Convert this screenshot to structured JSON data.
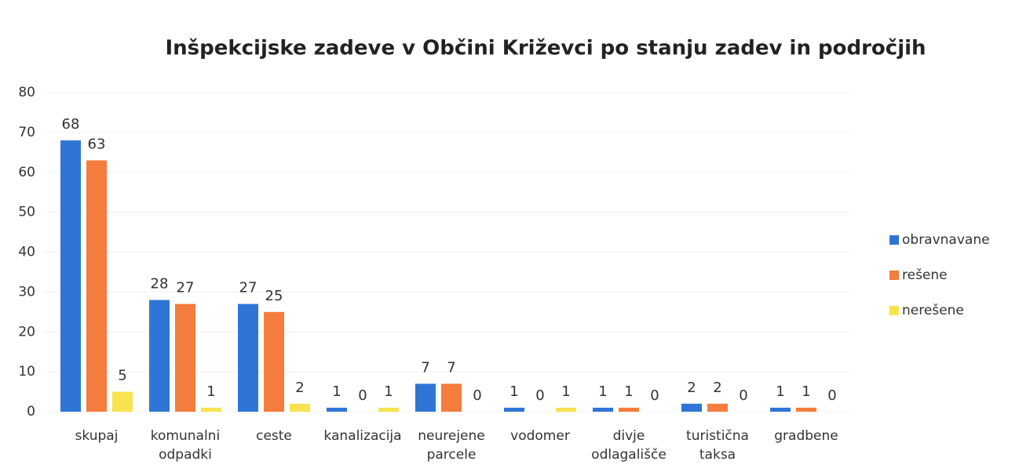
{
  "chart_data": {
    "type": "bar",
    "title": "Inšpekcijske zadeve v Občini Križevci po stanju zadev in področjih",
    "categories": [
      "skupaj",
      "komunalni odpadki",
      "ceste",
      "kanalizacija",
      "neurejene parcele",
      "vodomer",
      "divje odlagališče",
      "turistična taksa",
      "gradbene"
    ],
    "series": [
      {
        "name": "obravnavane",
        "color": "#2e75d6",
        "values": [
          68,
          28,
          27,
          1,
          7,
          1,
          1,
          2,
          1
        ]
      },
      {
        "name": "rešene",
        "color": "#f47c3c",
        "values": [
          63,
          27,
          25,
          0,
          7,
          0,
          1,
          2,
          1
        ]
      },
      {
        "name": "nerešene",
        "color": "#f7e34f",
        "values": [
          5,
          1,
          2,
          1,
          0,
          1,
          0,
          0,
          0
        ]
      }
    ],
    "ylim": [
      0,
      80
    ],
    "yticks": [
      0,
      10,
      20,
      30,
      40,
      50,
      60,
      70,
      80
    ],
    "grid": true,
    "legend": "right"
  }
}
